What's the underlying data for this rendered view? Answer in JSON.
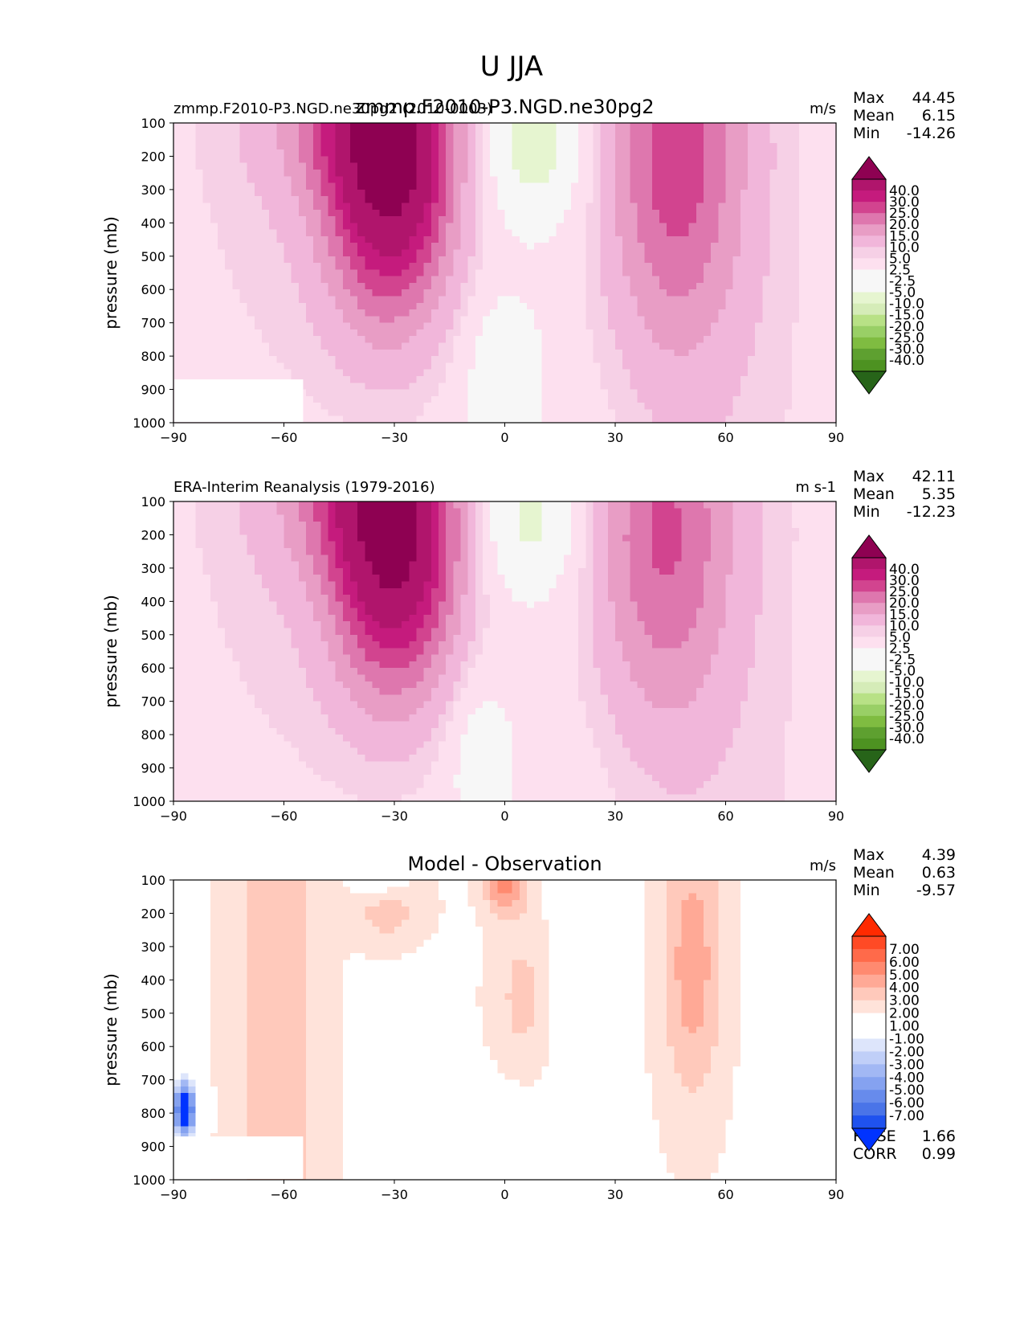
{
  "figure": {
    "title": "U JJA"
  },
  "colors": {
    "u_levels": [
      "#8e0152",
      "#b0156c",
      "#c51b7d",
      "#d2448f",
      "#de77ae",
      "#e89dc5",
      "#f1b6da",
      "#f6d0e6",
      "#fde0ef",
      "#f7f7f7",
      "#f7f7f7",
      "#e6f5d0",
      "#d5ecb8",
      "#b8e186",
      "#99cf66",
      "#7fbc41",
      "#5ea030",
      "#4d9221",
      "#276419"
    ],
    "diff_levels": [
      "#ff2a00",
      "#ff4a25",
      "#ff6a4a",
      "#ff8a70",
      "#ffa996",
      "#ffc9bb",
      "#ffe3da",
      "#ffffff",
      "#ffffff",
      "#dde5fb",
      "#c0cff8",
      "#a2b8f4",
      "#85a2f0",
      "#678bec",
      "#4a74e8",
      "#1f52ef",
      "#0033ff"
    ]
  },
  "chart_data": [
    {
      "type": "contour",
      "id": "panel-1",
      "title_center": "zmmp.F2010-P3.NGD.ne30pg2",
      "title_left": "zmmp.F2010-P3.NGD.ne30pg2 (2010-0003)",
      "units": "m/s",
      "xlabel": "",
      "ylabel": "pressure (mb)",
      "xlim": [
        -90,
        90
      ],
      "ylim": [
        1000,
        100
      ],
      "x_ticks": [
        "−90",
        "−60",
        "−30",
        "0",
        "30",
        "60",
        "90"
      ],
      "y_ticks": [
        "100",
        "200",
        "300",
        "400",
        "500",
        "600",
        "700",
        "800",
        "900",
        "1000"
      ],
      "stats": [
        {
          "label": "Max",
          "value": "44.45"
        },
        {
          "label": "Mean",
          "value": "6.15"
        },
        {
          "label": "Min",
          "value": "-14.26"
        }
      ],
      "colorbar_labels": [
        "40.0",
        "30.0",
        "25.0",
        "20.0",
        "15.0",
        "10.0",
        "5.0",
        "2.5",
        "-2.5",
        "-5.0",
        "-10.0",
        "-15.0",
        "-20.0",
        "-25.0",
        "-30.0",
        "-40.0"
      ],
      "jets": [
        {
          "lat": -31,
          "p": 190,
          "peak": 44.45,
          "sx": 12,
          "sp": 330
        },
        {
          "lat": -45,
          "p": 120,
          "peak": 8,
          "sx": 14,
          "sp": 150
        },
        {
          "lat": 46,
          "p": 200,
          "peak": 21,
          "sx": 13,
          "sp": 420
        },
        {
          "lat": 8,
          "p": 160,
          "peak": -14.26,
          "sx": 9,
          "sp": 170
        },
        {
          "lat": 0,
          "p": 870,
          "peak": -9,
          "sx": 7,
          "sp": 170
        }
      ]
    },
    {
      "type": "contour",
      "id": "panel-2",
      "title_center": "",
      "title_left": "ERA-Interim Reanalysis (1979-2016)",
      "units": "m s-1",
      "xlabel": "",
      "ylabel": "pressure (mb)",
      "xlim": [
        -90,
        90
      ],
      "ylim": [
        1000,
        100
      ],
      "x_ticks": [
        "−90",
        "−60",
        "−30",
        "0",
        "30",
        "60",
        "90"
      ],
      "y_ticks": [
        "100",
        "200",
        "300",
        "400",
        "500",
        "600",
        "700",
        "800",
        "900",
        "1000"
      ],
      "stats": [
        {
          "label": "Max",
          "value": "42.11"
        },
        {
          "label": "Mean",
          "value": "5.35"
        },
        {
          "label": "Min",
          "value": "-12.23"
        }
      ],
      "colorbar_labels": [
        "40.0",
        "30.0",
        "25.0",
        "20.0",
        "15.0",
        "10.0",
        "5.0",
        "2.5",
        "-2.5",
        "-5.0",
        "-10.0",
        "-15.0",
        "-20.0",
        "-25.0",
        "-30.0",
        "-40.0"
      ],
      "jets": [
        {
          "lat": -30,
          "p": 200,
          "peak": 42.11,
          "sx": 12,
          "sp": 320
        },
        {
          "lat": -45,
          "p": 120,
          "peak": 8,
          "sx": 14,
          "sp": 150
        },
        {
          "lat": 43,
          "p": 200,
          "peak": 19,
          "sx": 13,
          "sp": 400
        },
        {
          "lat": 7,
          "p": 150,
          "peak": -12.23,
          "sx": 9,
          "sp": 160
        },
        {
          "lat": -6,
          "p": 880,
          "peak": -8,
          "sx": 6,
          "sp": 160
        }
      ]
    },
    {
      "type": "contour",
      "id": "panel-3",
      "title_center": "Model - Observation",
      "title_left": "",
      "units": "m/s",
      "xlabel": "",
      "ylabel": "pressure (mb)",
      "xlim": [
        -90,
        90
      ],
      "ylim": [
        1000,
        100
      ],
      "x_ticks": [
        "−90",
        "−60",
        "−30",
        "0",
        "30",
        "60",
        "90"
      ],
      "y_ticks": [
        "100",
        "200",
        "300",
        "400",
        "500",
        "600",
        "700",
        "800",
        "900",
        "1000"
      ],
      "stats": [
        {
          "label": "Max",
          "value": "4.39"
        },
        {
          "label": "Mean",
          "value": "0.63"
        },
        {
          "label": "Min",
          "value": "-9.57"
        }
      ],
      "bottom_stats": [
        {
          "label": "RMSE",
          "value": "1.66"
        },
        {
          "label": "CORR",
          "value": "0.99"
        }
      ],
      "colorbar_labels": [
        "7.00",
        "6.00",
        "5.00",
        "4.00",
        "3.00",
        "2.00",
        "1.00",
        "-1.00",
        "-2.00",
        "-3.00",
        "-4.00",
        "-5.00",
        "-6.00",
        "-7.00"
      ]
    }
  ]
}
